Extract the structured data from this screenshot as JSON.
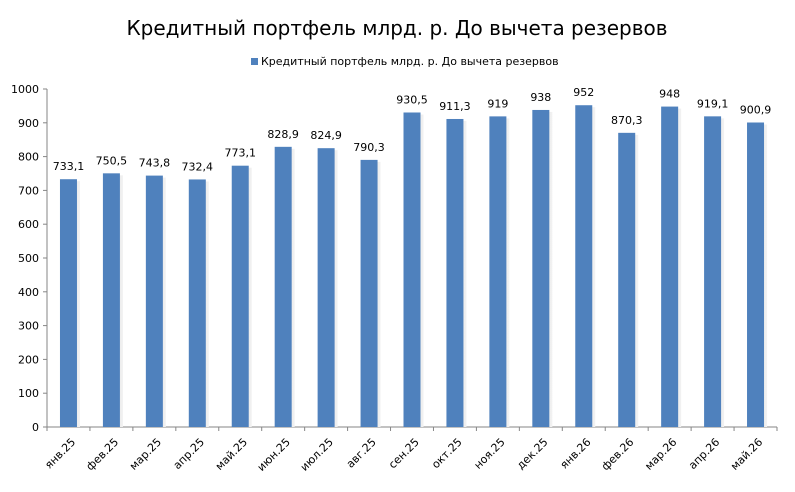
{
  "chart_data": {
    "type": "bar",
    "title": "Кредитный портфель млрд. р. До вычета резервов",
    "legend": {
      "placement": "top",
      "entries": [
        "Кредитный портфель млрд. р. До вычета резервов"
      ]
    },
    "categories": [
      "янв.25",
      "фев.25",
      "мар.25",
      "апр.25",
      "май.25",
      "июн.25",
      "июл.25",
      "авг.25",
      "сен.25",
      "окт.25",
      "ноя.25",
      "дек.25",
      "янв.26",
      "фев.26",
      "мар.26",
      "апр.26",
      "май.26"
    ],
    "series": [
      {
        "name": "Кредитный портфель млрд. р. До вычета резервов",
        "values": [
          733.1,
          750.5,
          743.8,
          732.4,
          773.1,
          828.9,
          824.9,
          790.3,
          930.5,
          911.3,
          919,
          938,
          952,
          870.3,
          948,
          919.1,
          900.9
        ],
        "labels": [
          "733,1",
          "750,5",
          "743,8",
          "732,4",
          "773,1",
          "828,9",
          "824,9",
          "790,3",
          "930,5",
          "911,3",
          "919",
          "938",
          "952",
          "870,3",
          "948",
          "919,1",
          "900,9"
        ],
        "color": "#4f81bd"
      }
    ],
    "ylim": [
      0,
      1000
    ],
    "yticks": [
      "0",
      "100",
      "200",
      "300",
      "400",
      "500",
      "600",
      "700",
      "800",
      "900",
      "1000"
    ],
    "ytick_values": [
      0,
      100,
      200,
      300,
      400,
      500,
      600,
      700,
      800,
      900,
      1000
    ],
    "grid": false
  }
}
